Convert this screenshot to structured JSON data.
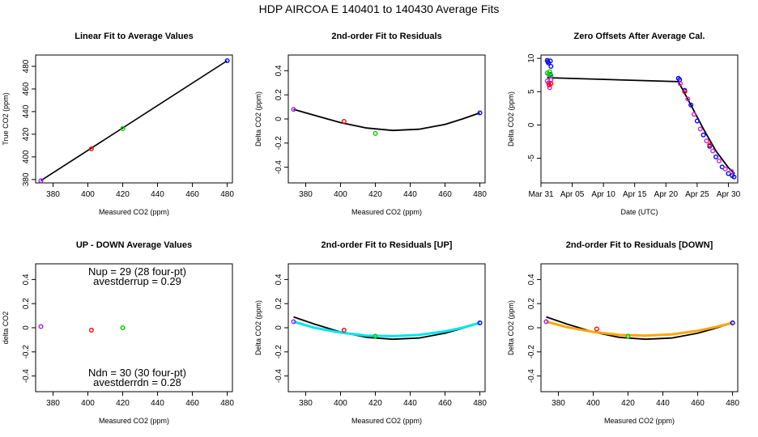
{
  "title": "HDP    AIRCOA E   140401 to 140430    Average Fits",
  "chart_data": [
    {
      "type": "scatter",
      "title": "Linear Fit to Average Values",
      "xlabel": "Measured CO2 (ppm)",
      "ylabel": "True CO2 (ppm)",
      "xlim": [
        370,
        483
      ],
      "ylim": [
        377,
        490
      ],
      "xticks": [
        380,
        400,
        420,
        440,
        460,
        480
      ],
      "yticks": [
        380,
        400,
        420,
        440,
        460,
        480
      ],
      "points": [
        {
          "x": 373,
          "y": 379,
          "color": "#a020f0"
        },
        {
          "x": 402,
          "y": 407,
          "color": "#ff0000"
        },
        {
          "x": 420,
          "y": 425,
          "color": "#00cc00"
        },
        {
          "x": 480,
          "y": 485,
          "color": "#0000ff"
        }
      ],
      "fit_line": {
        "type": "linear",
        "x0": 373,
        "y0": 379,
        "x1": 480,
        "y1": 485,
        "color": "#000000"
      }
    },
    {
      "type": "scatter",
      "title": "2nd-order Fit to Residuals",
      "xlabel": "Measured CO2 (ppm)",
      "ylabel": "Delta CO2 (ppm)",
      "xlim": [
        370,
        483
      ],
      "ylim": [
        -0.53,
        0.53
      ],
      "xticks": [
        380,
        400,
        420,
        440,
        460,
        480
      ],
      "yticks": [
        -0.4,
        -0.2,
        0.0,
        0.2,
        0.4
      ],
      "points": [
        {
          "x": 373,
          "y": 0.08,
          "color": "#a020f0"
        },
        {
          "x": 402,
          "y": -0.02,
          "color": "#ff0000"
        },
        {
          "x": 420,
          "y": -0.12,
          "color": "#00cc00"
        },
        {
          "x": 480,
          "y": 0.05,
          "color": "#0000ff"
        }
      ],
      "curves": [
        {
          "name": "fit",
          "color": "#000000",
          "x": [
            373,
            385,
            400,
            415,
            430,
            445,
            460,
            470,
            480
          ],
          "y": [
            0.08,
            0.03,
            -0.03,
            -0.075,
            -0.095,
            -0.085,
            -0.045,
            0.0,
            0.05
          ]
        }
      ]
    },
    {
      "type": "scatter",
      "title": "Zero Offsets After Average Cal.",
      "xlabel": "Date (UTC)",
      "ylabel": "Delta CO2 (ppm)",
      "xlim": [
        0,
        31.5
      ],
      "ylim": [
        -8.7,
        10.5
      ],
      "xticks": [
        0,
        5,
        10,
        15,
        20,
        25,
        30
      ],
      "xticklabels": [
        "Mar 31",
        "Apr 05",
        "Apr 10",
        "Apr 15",
        "Apr 20",
        "Apr 25",
        "Apr 30"
      ],
      "yticks": [
        -5,
        0,
        5,
        10
      ],
      "points_blue": [
        {
          "x": 1.0,
          "y": 9.7
        },
        {
          "x": 1.1,
          "y": 9.5
        },
        {
          "x": 1.2,
          "y": 9.3
        },
        {
          "x": 1.5,
          "y": 9.6
        },
        {
          "x": 1.6,
          "y": 8.8
        },
        {
          "x": 1.5,
          "y": 7.6
        },
        {
          "x": 22.0,
          "y": 7.0
        },
        {
          "x": 22.2,
          "y": 6.8
        },
        {
          "x": 23.0,
          "y": 5.2
        },
        {
          "x": 24.0,
          "y": 3.0
        },
        {
          "x": 25.0,
          "y": 0.6
        },
        {
          "x": 26.0,
          "y": -1.5
        },
        {
          "x": 27.0,
          "y": -3.2
        },
        {
          "x": 28.0,
          "y": -4.8
        },
        {
          "x": 29.0,
          "y": -6.3
        },
        {
          "x": 30.0,
          "y": -7.3
        },
        {
          "x": 30.6,
          "y": -7.6
        },
        {
          "x": 30.9,
          "y": -7.8
        }
      ],
      "points_green": [
        {
          "x": 1.0,
          "y": 7.8
        },
        {
          "x": 1.2,
          "y": 7.6
        },
        {
          "x": 1.4,
          "y": 8.0
        },
        {
          "x": 1.6,
          "y": 7.4
        }
      ],
      "points_magenta": [
        {
          "x": 1.0,
          "y": 6.6
        },
        {
          "x": 1.2,
          "y": 6.3
        },
        {
          "x": 1.4,
          "y": 5.6
        },
        {
          "x": 1.6,
          "y": 6.8
        },
        {
          "x": 22.3,
          "y": 6.2
        },
        {
          "x": 23.5,
          "y": 3.9
        },
        {
          "x": 24.5,
          "y": 1.6
        },
        {
          "x": 25.5,
          "y": -0.6
        },
        {
          "x": 26.5,
          "y": -2.4
        },
        {
          "x": 27.5,
          "y": -3.9
        },
        {
          "x": 28.5,
          "y": -5.4
        },
        {
          "x": 29.5,
          "y": -6.6
        },
        {
          "x": 30.5,
          "y": -7.0
        }
      ],
      "points_red": [
        {
          "x": 1.3,
          "y": 6.0
        },
        {
          "x": 1.6,
          "y": 6.2
        },
        {
          "x": 23.0,
          "y": 5.0
        },
        {
          "x": 27.0,
          "y": -3.0
        }
      ],
      "curves": [
        {
          "name": "offset-fit",
          "color": "#000000",
          "x": [
            1.0,
            22.0,
            24.0,
            26.0,
            28.0,
            30.0,
            31.0
          ],
          "y": [
            7.1,
            6.5,
            3.0,
            -0.6,
            -3.9,
            -6.4,
            -7.3
          ]
        }
      ]
    },
    {
      "type": "scatter",
      "title": "UP - DOWN Average Values",
      "xlabel": "Measured CO2 (ppm)",
      "ylabel": "delta CO2",
      "xlim": [
        370,
        483
      ],
      "ylim": [
        -0.53,
        0.53
      ],
      "xticks": [
        380,
        400,
        420,
        440,
        460,
        480
      ],
      "yticks": [
        -0.4,
        -0.2,
        0.0,
        0.2,
        0.4
      ],
      "points": [
        {
          "x": 373,
          "y": 0.01,
          "color": "#a020f0"
        },
        {
          "x": 402,
          "y": -0.02,
          "color": "#ff0000"
        },
        {
          "x": 420,
          "y": 0.0,
          "color": "#00cc00"
        }
      ],
      "annotations": {
        "nup": "Nup = 29 (28 four-pt)",
        "avestderrup": "avestderrup =  0.29",
        "ndn": "Ndn = 30 (30 four-pt)",
        "avestderrdn": "avestderrdn =  0.28"
      }
    },
    {
      "type": "scatter",
      "title": "2nd-order Fit to Residuals [UP]",
      "xlabel": "Measured CO2 (ppm)",
      "ylabel": "Delta CO2 (ppm)",
      "xlim": [
        370,
        483
      ],
      "ylim": [
        -0.53,
        0.53
      ],
      "xticks": [
        380,
        400,
        420,
        440,
        460,
        480
      ],
      "yticks": [
        -0.4,
        -0.2,
        0.0,
        0.2,
        0.4
      ],
      "points": [
        {
          "x": 373,
          "y": 0.05,
          "color": "#a020f0"
        },
        {
          "x": 402,
          "y": -0.02,
          "color": "#ff0000"
        },
        {
          "x": 420,
          "y": -0.07,
          "color": "#00cc00"
        },
        {
          "x": 480,
          "y": 0.04,
          "color": "#0000ff"
        }
      ],
      "curves": [
        {
          "name": "fit",
          "color": "#000000",
          "x": [
            373,
            385,
            400,
            415,
            430,
            445,
            460,
            470,
            480
          ],
          "y": [
            0.09,
            0.03,
            -0.035,
            -0.08,
            -0.095,
            -0.085,
            -0.045,
            -0.005,
            0.04
          ]
        },
        {
          "name": "up-fit",
          "color": "#00e5ee",
          "x": [
            373,
            385,
            400,
            415,
            430,
            445,
            460,
            470,
            480
          ],
          "y": [
            0.05,
            0.0,
            -0.04,
            -0.065,
            -0.07,
            -0.06,
            -0.03,
            0.0,
            0.04
          ]
        }
      ]
    },
    {
      "type": "scatter",
      "title": "2nd-order Fit to Residuals [DOWN]",
      "xlabel": "Measured CO2 (ppm)",
      "ylabel": "Delta CO2 (ppm)",
      "xlim": [
        370,
        483
      ],
      "ylim": [
        -0.53,
        0.53
      ],
      "xticks": [
        380,
        400,
        420,
        440,
        460,
        480
      ],
      "yticks": [
        -0.4,
        -0.2,
        0.0,
        0.2,
        0.4
      ],
      "points": [
        {
          "x": 373,
          "y": 0.05,
          "color": "#a020f0"
        },
        {
          "x": 402,
          "y": -0.01,
          "color": "#ff0000"
        },
        {
          "x": 420,
          "y": -0.07,
          "color": "#00cc00"
        },
        {
          "x": 480,
          "y": 0.04,
          "color": "#0000ff"
        }
      ],
      "curves": [
        {
          "name": "fit",
          "color": "#000000",
          "x": [
            373,
            385,
            400,
            415,
            430,
            445,
            460,
            470,
            480
          ],
          "y": [
            0.09,
            0.03,
            -0.035,
            -0.08,
            -0.095,
            -0.085,
            -0.045,
            -0.005,
            0.04
          ]
        },
        {
          "name": "down-fit",
          "color": "#ffa500",
          "x": [
            373,
            385,
            400,
            415,
            430,
            445,
            460,
            470,
            480
          ],
          "y": [
            0.05,
            0.005,
            -0.035,
            -0.06,
            -0.065,
            -0.055,
            -0.025,
            0.005,
            0.04
          ]
        }
      ]
    }
  ]
}
